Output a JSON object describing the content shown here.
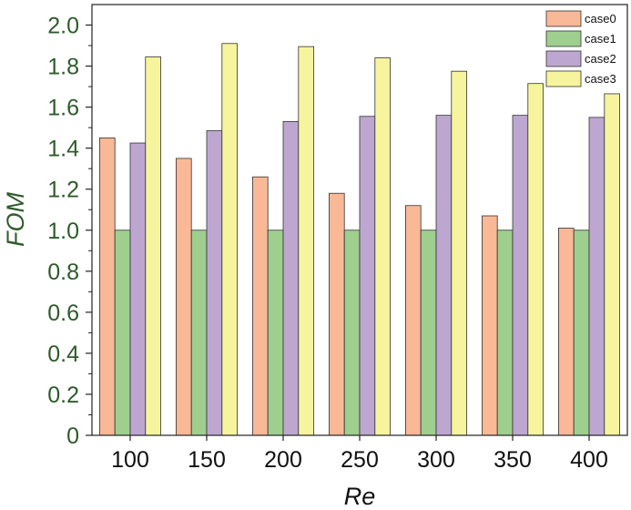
{
  "chart_data": {
    "type": "bar",
    "xlabel": "Re",
    "ylabel": "FOM",
    "categories": [
      "100",
      "150",
      "200",
      "250",
      "300",
      "350",
      "400"
    ],
    "ylim": [
      0,
      2.1
    ],
    "yticks": [
      "0",
      "0.2",
      "0.4",
      "0.6",
      "0.8",
      "1.0",
      "1.2",
      "1.4",
      "1.6",
      "1.8",
      "2.0"
    ],
    "legend_position": "top-right",
    "grid": false,
    "series": [
      {
        "name": "case0",
        "color": "#f9b896",
        "values": [
          1.45,
          1.35,
          1.26,
          1.18,
          1.12,
          1.07,
          1.01
        ]
      },
      {
        "name": "case1",
        "color": "#9fcf8f",
        "values": [
          1.0,
          1.0,
          1.0,
          1.0,
          1.0,
          1.0,
          1.0
        ]
      },
      {
        "name": "case2",
        "color": "#bda7d1",
        "values": [
          1.425,
          1.485,
          1.53,
          1.555,
          1.56,
          1.56,
          1.55
        ]
      },
      {
        "name": "case3",
        "color": "#f6f59d",
        "values": [
          1.845,
          1.91,
          1.895,
          1.84,
          1.775,
          1.715,
          1.665
        ]
      }
    ]
  }
}
